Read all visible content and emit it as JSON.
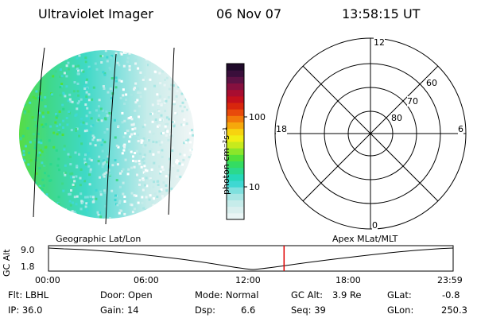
{
  "header": {
    "instrument": "Ultraviolet Imager",
    "date": "06 Nov 07",
    "time": "13:58:15 UT"
  },
  "colorbar": {
    "label": "photon cm⁻²s⁻¹",
    "ticks": [
      "100",
      "10"
    ],
    "colors": [
      "#e9f5f5",
      "#d9efee",
      "#c6ecea",
      "#a8e6e4",
      "#7fe0de",
      "#3fd8d2",
      "#26d9b8",
      "#2bd98d",
      "#34dc62",
      "#52e03a",
      "#8be62a",
      "#c7ea1d",
      "#f0ee15",
      "#f7d30f",
      "#f6a80b",
      "#f27a0a",
      "#e84a0b",
      "#d8260d",
      "#c4101c",
      "#a80d30",
      "#86103f",
      "#5d1244",
      "#3a0f3b",
      "#1f0a2a"
    ]
  },
  "polar_plot": {
    "mlt_labels": {
      "top": "12",
      "left": "18",
      "right": "6",
      "bottom": "0"
    },
    "lat_labels": [
      "60",
      "70",
      "80"
    ]
  },
  "timeline": {
    "left_title": "Geographic Lat/Lon",
    "right_title": "Apex MLat/MLT",
    "y_axis_label": "GC Alt",
    "y_ticks": [
      "9.0",
      "1.8"
    ],
    "x_ticks": [
      "00:00",
      "06:00",
      "12:00",
      "18:00",
      "23:59"
    ],
    "current_time_fraction": 0.5821
  },
  "info": {
    "row1": {
      "flt": "Flt: LBHL",
      "door": "Door: Open",
      "mode": "Mode: Normal",
      "gcalt_label": "GC Alt:",
      "gcalt_value": "3.9 Re",
      "glat_label": "GLat:",
      "glat_value": "-0.8"
    },
    "row2": {
      "ip": "IP: 36.0",
      "gain": "Gain: 14",
      "dsp_label": "Dsp:",
      "dsp_value": "6.6",
      "seq": "Seq: 39",
      "glon_label": "GLon:",
      "glon_value": "250.3"
    }
  }
}
